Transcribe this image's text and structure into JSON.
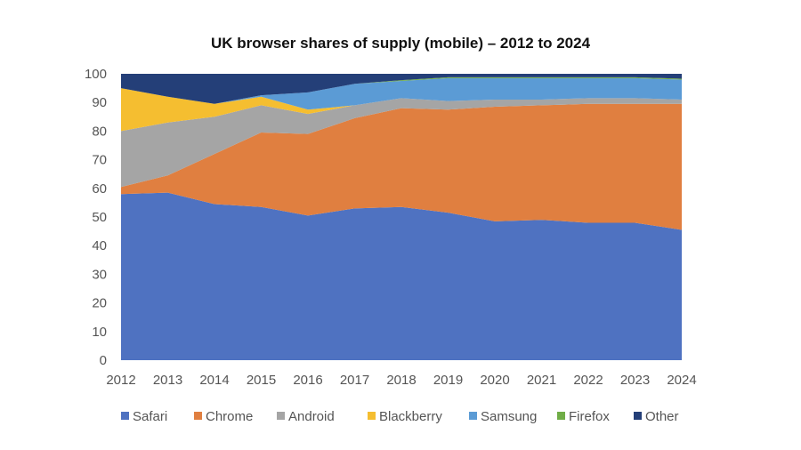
{
  "chart_data": {
    "type": "area",
    "stacked": true,
    "title": "UK browser shares of supply (mobile) – 2012 to 2024",
    "xlabel": "",
    "ylabel": "",
    "ylim": [
      0,
      100
    ],
    "yticks": [
      "0",
      "10",
      "20",
      "30",
      "40",
      "50",
      "60",
      "70",
      "80",
      "90",
      "100"
    ],
    "categories": [
      "2012",
      "2013",
      "2014",
      "2015",
      "2016",
      "2017",
      "2018",
      "2019",
      "2020",
      "2021",
      "2022",
      "2023",
      "2024"
    ],
    "grid": false,
    "legend_position": "bottom",
    "series": [
      {
        "name": "Safari",
        "color": "#4F72C1",
        "values": [
          58,
          58.5,
          54.5,
          53.5,
          50.5,
          53,
          53.5,
          51.5,
          48.5,
          49,
          48,
          48,
          45.5
        ]
      },
      {
        "name": "Chrome",
        "color": "#E07F40",
        "values": [
          2.5,
          6,
          17.5,
          26,
          28.5,
          31.5,
          34.5,
          36,
          40,
          40,
          41.5,
          41.5,
          44
        ]
      },
      {
        "name": "Android",
        "color": "#A5A5A5",
        "values": [
          19.5,
          18.5,
          13,
          9.5,
          7,
          4.5,
          3.5,
          3,
          2.5,
          2,
          2,
          2,
          1.5
        ]
      },
      {
        "name": "Blackberry",
        "color": "#F5BE30",
        "values": [
          15,
          9,
          4.5,
          3,
          1.5,
          0,
          0,
          0,
          0,
          0,
          0,
          0,
          0
        ]
      },
      {
        "name": "Samsung",
        "color": "#5B9BD5",
        "values": [
          0,
          0,
          0,
          0.5,
          6,
          7.5,
          6,
          8,
          7.5,
          7.5,
          7,
          7,
          7
        ]
      },
      {
        "name": "Firefox",
        "color": "#70AD47",
        "values": [
          0,
          0,
          0,
          0,
          0,
          0,
          0.3,
          0.3,
          0.3,
          0.3,
          0.3,
          0.3,
          0.3
        ]
      },
      {
        "name": "Other",
        "color": "#243F78",
        "values": [
          5,
          8,
          10.5,
          7.5,
          6.5,
          3.5,
          2.2,
          1.2,
          1.2,
          1.2,
          1.2,
          1.2,
          1.7
        ]
      }
    ]
  }
}
